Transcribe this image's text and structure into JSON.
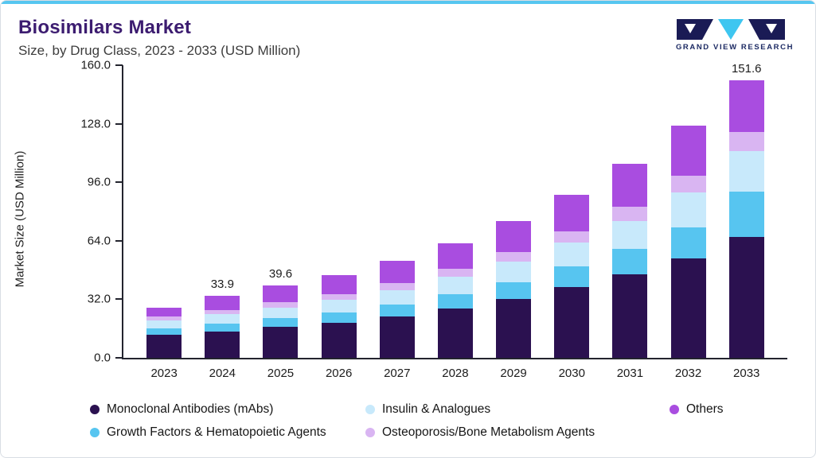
{
  "header": {
    "title": "Biosimilars Market",
    "subtitle": "Size, by Drug Class, 2023 - 2033 (USD Million)"
  },
  "logo": {
    "brand": "GRAND VIEW RESEARCH"
  },
  "chart_data": {
    "type": "bar",
    "stacked": true,
    "title": "Biosimilars Market Size, by Drug Class, 2023 - 2033 (USD Million)",
    "xlabel": "",
    "ylabel": "Market Size (USD Million)",
    "ylim": [
      0,
      160
    ],
    "yticks": [
      "160.0",
      "128.0",
      "96.0",
      "64.0",
      "32.0",
      "0.0"
    ],
    "grid": false,
    "legend_position": "bottom",
    "categories": [
      "2023",
      "2024",
      "2025",
      "2026",
      "2027",
      "2028",
      "2029",
      "2030",
      "2031",
      "2032",
      "2033"
    ],
    "series": [
      {
        "name": "Monoclonal Antibodies (mAbs)",
        "color": "#2B1150",
        "values": [
          12.5,
          14.5,
          16.8,
          19.2,
          22.5,
          27.0,
          32.0,
          38.5,
          45.5,
          54.5,
          66.0
        ]
      },
      {
        "name": "Growth Factors & Hematopoietic Agents",
        "color": "#57C5F0",
        "values": [
          3.8,
          4.4,
          5.0,
          5.8,
          6.8,
          8.0,
          9.5,
          11.5,
          14.0,
          17.0,
          25.0
        ]
      },
      {
        "name": "Insulin & Analogues",
        "color": "#C8E9FB",
        "values": [
          4.2,
          5.0,
          5.8,
          6.7,
          7.8,
          9.2,
          11.0,
          13.0,
          15.5,
          19.0,
          22.0
        ]
      },
      {
        "name": "Osteoporosis/Bone Metabolism Agents",
        "color": "#D9B5F2",
        "values": [
          2.0,
          2.4,
          2.8,
          3.2,
          3.7,
          4.4,
          5.2,
          6.2,
          7.5,
          9.0,
          10.6
        ]
      },
      {
        "name": "Others",
        "color": "#A94DE0",
        "values": [
          5.0,
          7.6,
          9.2,
          10.4,
          12.2,
          14.2,
          17.0,
          19.8,
          23.5,
          27.5,
          28.0
        ]
      }
    ],
    "bar_labels": {
      "2024": "33.9",
      "2025": "39.6",
      "2033": "151.6"
    }
  },
  "legend": {
    "rows": [
      [
        {
          "label": "Monoclonal Antibodies (mAbs)",
          "color": "#2B1150"
        },
        {
          "label": "Insulin & Analogues",
          "color": "#C8E9FB"
        },
        {
          "label": "Others",
          "color": "#A94DE0"
        }
      ],
      [
        {
          "label": "Growth Factors & Hematopoietic Agents",
          "color": "#57C5F0"
        },
        {
          "label": "Osteoporosis/Bone Metabolism Agents",
          "color": "#D9B5F2"
        }
      ]
    ]
  }
}
